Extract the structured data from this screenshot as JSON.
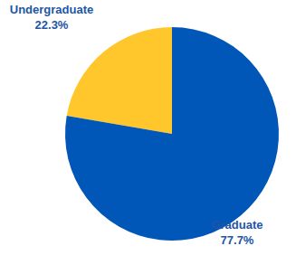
{
  "chart_data": {
    "type": "pie",
    "categories": [
      "Undergraduate",
      "Graduate"
    ],
    "values": [
      22.3,
      77.7
    ],
    "value_labels": [
      "22.3%",
      "77.7%"
    ],
    "colors": [
      "#FFC72C",
      "#0057B8"
    ],
    "data_labels": true
  }
}
